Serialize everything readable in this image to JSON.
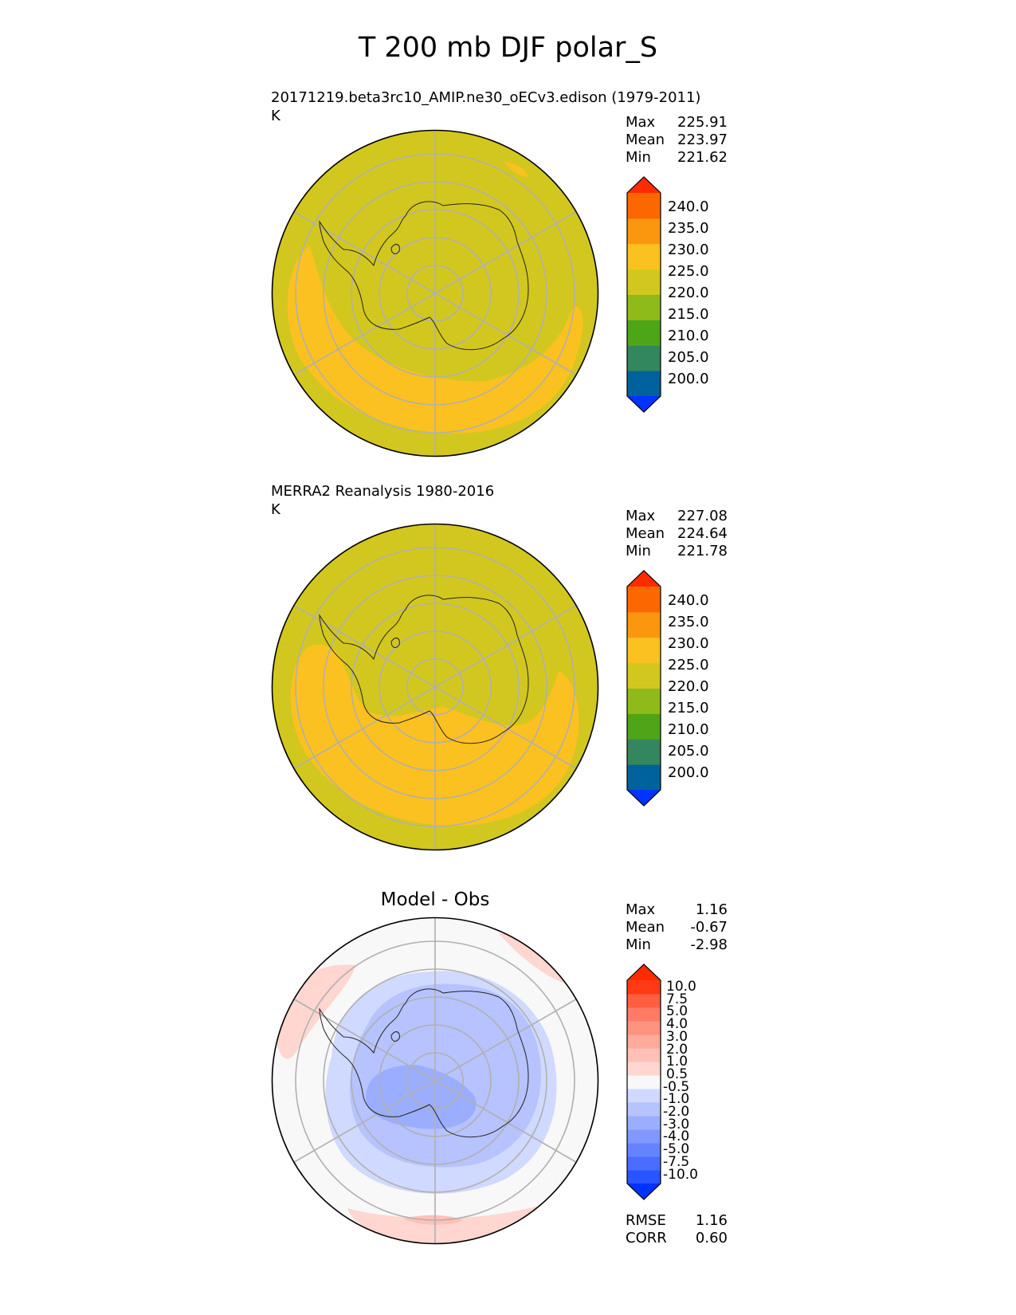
{
  "figure": {
    "title": "T 200 mb DJF polar_S"
  },
  "chart_data": [
    {
      "type": "heatmap",
      "projection": "south polar stereographic",
      "title": "20171219.beta3rc10_AMIP.ne30_oECv3.edison (1979-2011)",
      "units": "K",
      "stats": {
        "max_label": "Max",
        "max": "225.91",
        "mean_label": "Mean",
        "mean": "223.97",
        "min_label": "Min",
        "min": "221.62"
      },
      "colorbar": {
        "ticks": [
          "240.0",
          "235.0",
          "230.0",
          "225.0",
          "220.0",
          "215.0",
          "210.0",
          "205.0",
          "200.0"
        ],
        "colors": [
          "#0033ff",
          "#00629d",
          "#33875e",
          "#4ea518",
          "#8fba1a",
          "#d2c71e",
          "#fbc121",
          "#fb970e",
          "#fd6701",
          "#ff2b00"
        ],
        "extend": "both"
      },
      "fill_levels": [
        "220-225",
        "225-230"
      ]
    },
    {
      "type": "heatmap",
      "projection": "south polar stereographic",
      "title": "MERRA2 Reanalysis 1980-2016",
      "units": "K",
      "stats": {
        "max_label": "Max",
        "max": "227.08",
        "mean_label": "Mean",
        "mean": "224.64",
        "min_label": "Min",
        "min": "221.78"
      },
      "colorbar": {
        "ticks": [
          "240.0",
          "235.0",
          "230.0",
          "225.0",
          "220.0",
          "215.0",
          "210.0",
          "205.0",
          "200.0"
        ],
        "colors": [
          "#0033ff",
          "#00629d",
          "#33875e",
          "#4ea518",
          "#8fba1a",
          "#d2c71e",
          "#fbc121",
          "#fb970e",
          "#fd6701",
          "#ff2b00"
        ],
        "extend": "both"
      },
      "fill_levels": [
        "220-225",
        "225-230"
      ]
    },
    {
      "type": "heatmap",
      "projection": "south polar stereographic",
      "title": "Model - Obs",
      "stats": {
        "max_label": "Max",
        "max": "1.16",
        "mean_label": "Mean",
        "mean": "-0.67",
        "min_label": "Min",
        "min": "-2.98"
      },
      "metrics": {
        "rmse_label": "RMSE",
        "rmse": "1.16",
        "corr_label": "CORR",
        "corr": "0.60"
      },
      "colorbar": {
        "ticks": [
          "10.0",
          "7.5",
          "5.0",
          "4.0",
          "3.0",
          "2.0",
          "1.0",
          "0.5",
          "-0.5",
          "-1.0",
          "-2.0",
          "-3.0",
          "-4.0",
          "-5.0",
          "-7.5",
          "-10.0"
        ],
        "colors": [
          "#0033ff",
          "#2855ff",
          "#4a6cff",
          "#6683ff",
          "#8098ff",
          "#9badff",
          "#b6c3ff",
          "#d0d9ff",
          "#f8f8f8",
          "#ffd6d0",
          "#ffc0b6",
          "#ffaa9b",
          "#ff9380",
          "#ff7b65",
          "#ff5e40",
          "#ff3a15",
          "#ff2b00"
        ],
        "extend": "both"
      },
      "fill_levels": [
        "-3.0 to -2.0",
        "-2.0 to -1.0",
        "-1.0 to -0.5",
        "-0.5 to 0.5",
        "0.5 to 1.0",
        "1.0 to 2.0"
      ]
    }
  ]
}
